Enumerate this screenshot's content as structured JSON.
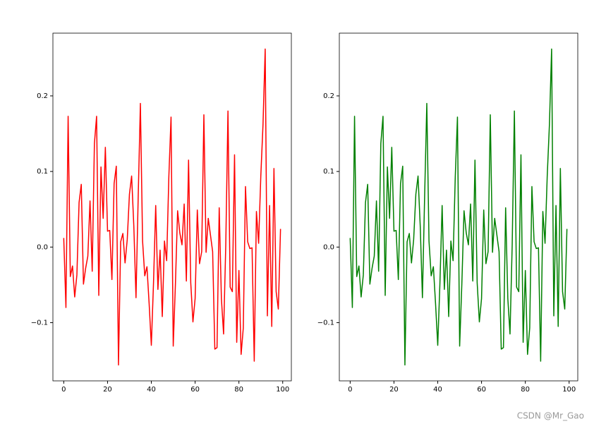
{
  "chart_data": [
    {
      "type": "line",
      "x": [
        0,
        1,
        2,
        3,
        4,
        5,
        6,
        7,
        8,
        9,
        10,
        11,
        12,
        13,
        14,
        15,
        16,
        17,
        18,
        19,
        20,
        21,
        22,
        23,
        24,
        25,
        26,
        27,
        28,
        29,
        30,
        31,
        32,
        33,
        34,
        35,
        36,
        37,
        38,
        39,
        40,
        41,
        42,
        43,
        44,
        45,
        46,
        47,
        48,
        49,
        50,
        51,
        52,
        53,
        54,
        55,
        56,
        57,
        58,
        59,
        60,
        61,
        62,
        63,
        64,
        65,
        66,
        67,
        68,
        69,
        70,
        71,
        72,
        73,
        74,
        75,
        76,
        77,
        78,
        79,
        80,
        81,
        82,
        83,
        84,
        85,
        86,
        87,
        88,
        89,
        90,
        91,
        92,
        93,
        94,
        95,
        96,
        97,
        98,
        99
      ],
      "series": [
        {
          "color": "#ff0000",
          "values": [
            0.012,
            -0.08,
            0.173,
            -0.039,
            -0.025,
            -0.066,
            -0.037,
            0.059,
            0.083,
            -0.049,
            -0.028,
            -0.012,
            0.061,
            -0.032,
            0.137,
            0.173,
            -0.064,
            0.106,
            0.038,
            0.132,
            0.021,
            0.022,
            -0.043,
            0.084,
            0.107,
            -0.156,
            0.007,
            0.018,
            -0.021,
            0.01,
            0.07,
            0.094,
            0.028,
            -0.067,
            0.066,
            0.19,
            0.008,
            -0.038,
            -0.026,
            -0.075,
            -0.13,
            -0.047,
            0.055,
            -0.056,
            -0.004,
            -0.092,
            0.008,
            -0.018,
            0.093,
            0.172,
            -0.131,
            -0.049,
            0.048,
            0.019,
            0.003,
            0.057,
            -0.045,
            0.115,
            -0.047,
            -0.099,
            -0.068,
            0.049,
            -0.022,
            -0.006,
            0.175,
            -0.007,
            0.038,
            0.016,
            -0.006,
            -0.135,
            -0.133,
            0.052,
            -0.068,
            -0.115,
            0.003,
            0.18,
            -0.053,
            -0.059,
            0.122,
            -0.126,
            -0.031,
            -0.142,
            -0.107,
            0.08,
            0.007,
            -0.002,
            -0.001,
            -0.151,
            0.047,
            0.005,
            0.094,
            0.162,
            0.262,
            -0.091,
            0.055,
            -0.105,
            0.104,
            -0.059,
            -0.082,
            0.024
          ]
        }
      ],
      "xlim": [
        -4.95,
        103.95
      ],
      "xticks": [
        0,
        20,
        40,
        60,
        80,
        100
      ],
      "ylim": [
        -0.177,
        0.283
      ],
      "yticks": [
        {
          "value": -0.1,
          "label": "−0.1"
        },
        {
          "value": 0,
          "label": "0.0"
        },
        0.1,
        0.2
      ]
    },
    {
      "type": "line",
      "x": [
        0,
        1,
        2,
        3,
        4,
        5,
        6,
        7,
        8,
        9,
        10,
        11,
        12,
        13,
        14,
        15,
        16,
        17,
        18,
        19,
        20,
        21,
        22,
        23,
        24,
        25,
        26,
        27,
        28,
        29,
        30,
        31,
        32,
        33,
        34,
        35,
        36,
        37,
        38,
        39,
        40,
        41,
        42,
        43,
        44,
        45,
        46,
        47,
        48,
        49,
        50,
        51,
        52,
        53,
        54,
        55,
        56,
        57,
        58,
        59,
        60,
        61,
        62,
        63,
        64,
        65,
        66,
        67,
        68,
        69,
        70,
        71,
        72,
        73,
        74,
        75,
        76,
        77,
        78,
        79,
        80,
        81,
        82,
        83,
        84,
        85,
        86,
        87,
        88,
        89,
        90,
        91,
        92,
        93,
        94,
        95,
        96,
        97,
        98,
        99
      ],
      "series": [
        {
          "color": "#008000",
          "values": [
            0.012,
            -0.08,
            0.173,
            -0.039,
            -0.025,
            -0.066,
            -0.037,
            0.059,
            0.083,
            -0.049,
            -0.028,
            -0.012,
            0.061,
            -0.032,
            0.137,
            0.173,
            -0.064,
            0.106,
            0.038,
            0.132,
            0.021,
            0.022,
            -0.043,
            0.084,
            0.107,
            -0.156,
            0.007,
            0.018,
            -0.021,
            0.01,
            0.07,
            0.094,
            0.028,
            -0.067,
            0.066,
            0.19,
            0.008,
            -0.038,
            -0.026,
            -0.075,
            -0.13,
            -0.047,
            0.055,
            -0.056,
            -0.004,
            -0.092,
            0.008,
            -0.018,
            0.093,
            0.172,
            -0.131,
            -0.049,
            0.048,
            0.019,
            0.003,
            0.057,
            -0.045,
            0.115,
            -0.047,
            -0.099,
            -0.068,
            0.049,
            -0.022,
            -0.006,
            0.175,
            -0.007,
            0.038,
            0.016,
            -0.006,
            -0.135,
            -0.133,
            0.052,
            -0.068,
            -0.115,
            0.003,
            0.18,
            -0.053,
            -0.059,
            0.122,
            -0.126,
            -0.031,
            -0.142,
            -0.107,
            0.08,
            0.007,
            -0.002,
            -0.001,
            -0.151,
            0.047,
            0.005,
            0.094,
            0.162,
            0.262,
            -0.091,
            0.055,
            -0.105,
            0.104,
            -0.059,
            -0.082,
            0.024
          ]
        }
      ],
      "xlim": [
        -4.95,
        103.95
      ],
      "xticks": [
        0,
        20,
        40,
        60,
        80,
        100
      ],
      "ylim": [
        -0.177,
        0.283
      ],
      "yticks": [
        {
          "value": -0.1,
          "label": "−0.1"
        },
        {
          "value": 0,
          "label": "0.0"
        },
        0.1,
        0.2
      ]
    }
  ],
  "watermark": "CSDN @Mr_Gao"
}
